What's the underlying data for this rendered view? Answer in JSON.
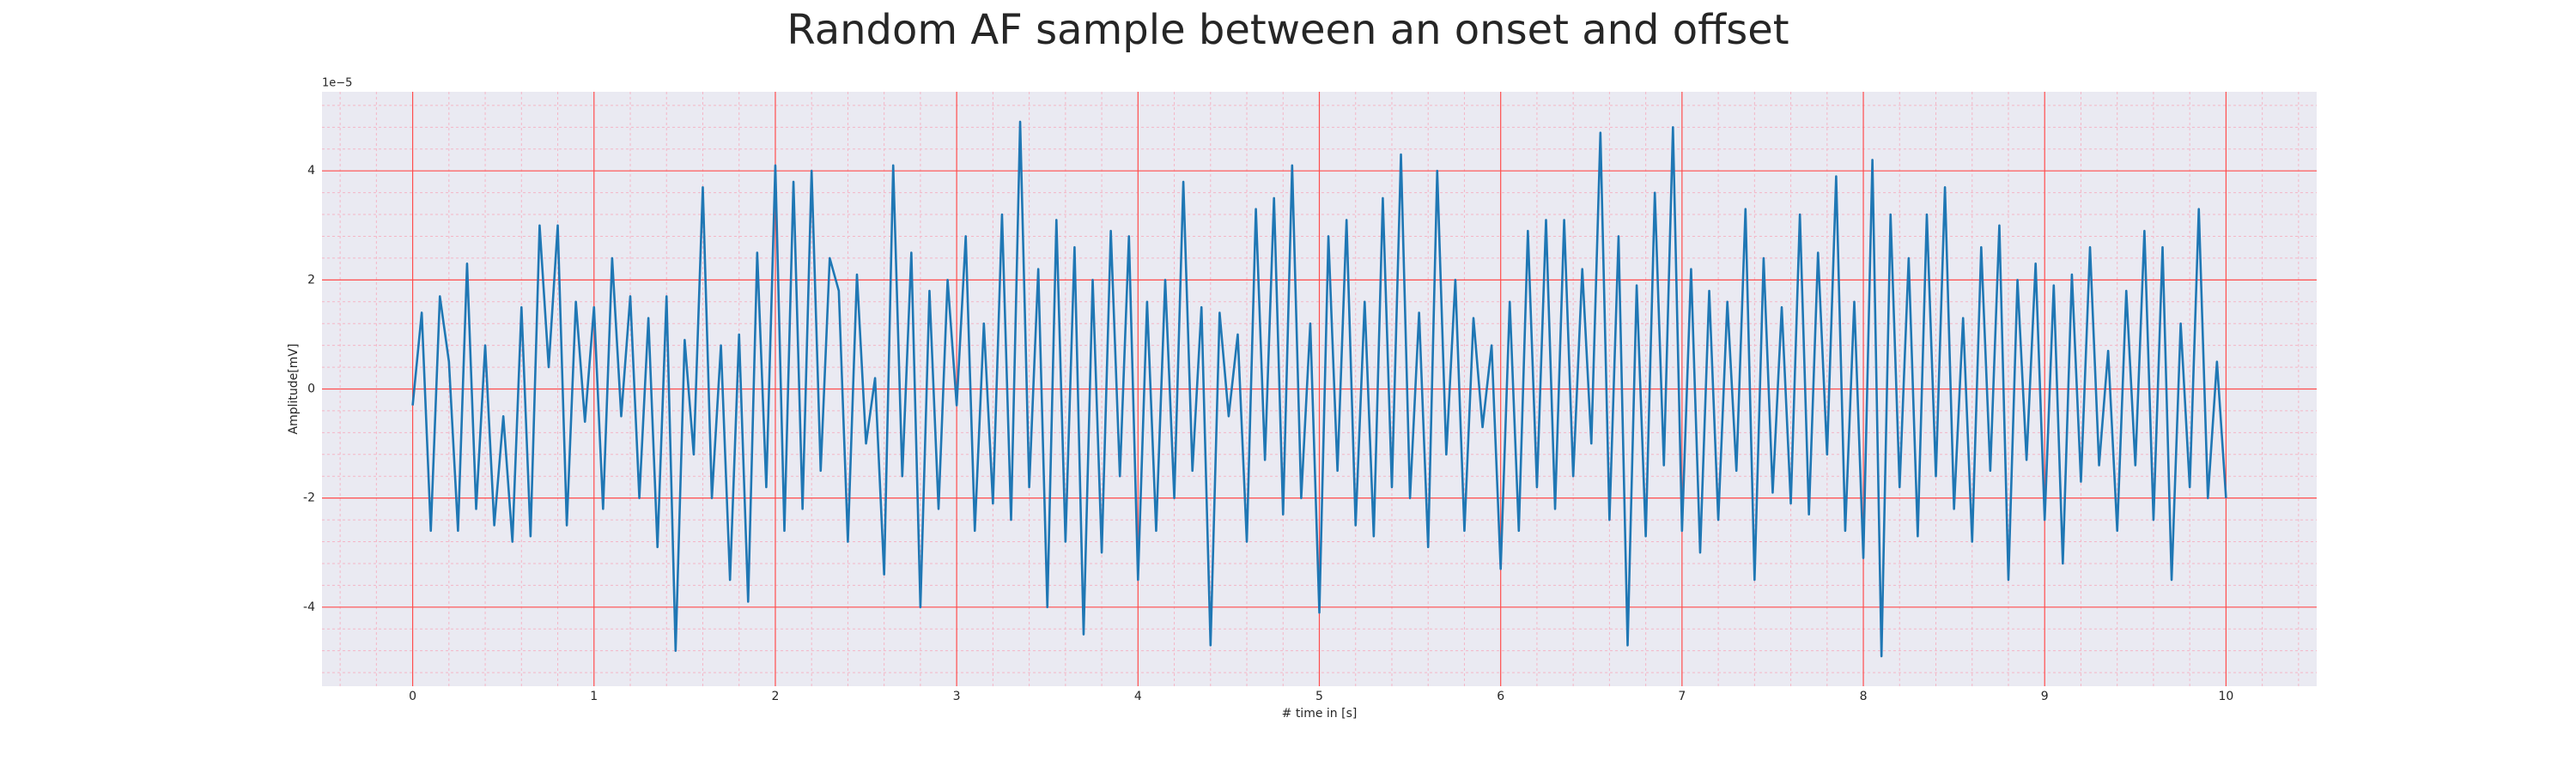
{
  "chart_data": {
    "type": "line",
    "title": "Random AF sample between an onset and offset",
    "xlabel": "# time in [s]",
    "ylabel": "Amplitude[mV]",
    "offset_label": "1e−5",
    "xlim": [
      -0.5,
      10.5
    ],
    "ylim": [
      -5.45,
      5.45
    ],
    "xticks": [
      0,
      1,
      2,
      3,
      4,
      5,
      6,
      7,
      8,
      9,
      10
    ],
    "yticks": [
      -4,
      -2,
      0,
      2,
      4
    ],
    "grid": true,
    "grid_color": "#ff4d4d",
    "minor_grid": true,
    "minor_divisions": 5,
    "minor_grid_color": "#f4b6c6",
    "background": "#eaeaf2",
    "x": [
      0,
      0.05,
      0.1,
      0.15,
      0.2,
      0.25,
      0.3,
      0.35,
      0.4,
      0.45,
      0.5,
      0.55,
      0.6,
      0.65,
      0.7,
      0.75,
      0.8,
      0.85,
      0.9,
      0.95,
      1,
      1.05,
      1.1,
      1.15,
      1.2,
      1.25,
      1.3,
      1.35,
      1.4,
      1.45,
      1.5,
      1.55,
      1.6,
      1.65,
      1.7,
      1.75,
      1.8,
      1.85,
      1.9,
      1.95,
      2,
      2.05,
      2.1,
      2.15,
      2.2,
      2.25,
      2.3,
      2.35,
      2.4,
      2.45,
      2.5,
      2.55,
      2.6,
      2.65,
      2.7,
      2.75,
      2.8,
      2.85,
      2.9,
      2.95,
      3,
      3.05,
      3.1,
      3.15,
      3.2,
      3.25,
      3.3,
      3.35,
      3.4,
      3.45,
      3.5,
      3.55,
      3.6,
      3.65,
      3.7,
      3.75,
      3.8,
      3.85,
      3.9,
      3.95,
      4,
      4.05,
      4.1,
      4.15,
      4.2,
      4.25,
      4.3,
      4.35,
      4.4,
      4.45,
      4.5,
      4.55,
      4.6,
      4.65,
      4.7,
      4.75,
      4.8,
      4.85,
      4.9,
      4.95,
      5,
      5.05,
      5.1,
      5.15,
      5.2,
      5.25,
      5.3,
      5.35,
      5.4,
      5.45,
      5.5,
      5.55,
      5.6,
      5.65,
      5.7,
      5.75,
      5.8,
      5.85,
      5.9,
      5.95,
      6,
      6.05,
      6.1,
      6.15,
      6.2,
      6.25,
      6.3,
      6.35,
      6.4,
      6.45,
      6.5,
      6.55,
      6.6,
      6.65,
      6.7,
      6.75,
      6.8,
      6.85,
      6.9,
      6.95,
      7,
      7.05,
      7.1,
      7.15,
      7.2,
      7.25,
      7.3,
      7.35,
      7.4,
      7.45,
      7.5,
      7.55,
      7.6,
      7.65,
      7.7,
      7.75,
      7.8,
      7.85,
      7.9,
      7.95,
      8,
      8.05,
      8.1,
      8.15,
      8.2,
      8.25,
      8.3,
      8.35,
      8.4,
      8.45,
      8.5,
      8.55,
      8.6,
      8.65,
      8.7,
      8.75,
      8.8,
      8.85,
      8.9,
      8.95,
      9,
      9.05,
      9.1,
      9.15,
      9.2,
      9.25,
      9.3,
      9.35,
      9.4,
      9.45,
      9.5,
      9.55,
      9.6,
      9.65,
      9.7,
      9.75,
      9.8,
      9.85,
      9.9,
      9.95,
      10
    ],
    "series": [
      {
        "color": "#1f77b4",
        "values": [
          -0.3,
          1.4,
          -2.6,
          1.7,
          0.5,
          -2.6,
          2.3,
          -2.2,
          0.8,
          -2.5,
          -0.5,
          -2.8,
          1.5,
          -2.7,
          3.0,
          0.4,
          3.0,
          -2.5,
          1.6,
          -0.6,
          1.5,
          -2.2,
          2.4,
          -0.5,
          1.7,
          -2.0,
          1.3,
          -2.9,
          1.7,
          -4.8,
          0.9,
          -1.2,
          3.7,
          -2.0,
          0.8,
          -3.5,
          1.0,
          -3.9,
          2.5,
          -1.8,
          4.1,
          -2.6,
          3.8,
          -2.2,
          4.0,
          -1.5,
          2.4,
          1.8,
          -2.8,
          2.1,
          -1.0,
          0.2,
          -3.4,
          4.1,
          -1.6,
          2.5,
          -4.0,
          1.8,
          -2.2,
          2.0,
          -0.3,
          2.8,
          -2.6,
          1.2,
          -2.1,
          3.2,
          -2.4,
          4.9,
          -1.8,
          2.2,
          -4.0,
          3.1,
          -2.8,
          2.6,
          -4.5,
          2.0,
          -3.0,
          2.9,
          -1.6,
          2.8,
          -3.5,
          1.6,
          -2.6,
          2.0,
          -2.0,
          3.8,
          -1.5,
          1.5,
          -4.7,
          1.4,
          -0.5,
          1.0,
          -2.8,
          3.3,
          -1.3,
          3.5,
          -2.3,
          4.1,
          -2.0,
          1.2,
          -4.1,
          2.8,
          -1.5,
          3.1,
          -2.5,
          1.6,
          -2.7,
          3.5,
          -1.8,
          4.3,
          -2.0,
          1.4,
          -2.9,
          4.0,
          -1.2,
          2.0,
          -2.6,
          1.3,
          -0.7,
          0.8,
          -3.3,
          1.6,
          -2.6,
          2.9,
          -1.8,
          3.1,
          -2.2,
          3.1,
          -1.6,
          2.2,
          -1.0,
          4.7,
          -2.4,
          2.8,
          -4.7,
          1.9,
          -2.7,
          3.6,
          -1.4,
          4.8,
          -2.6,
          2.2,
          -3.0,
          1.8,
          -2.4,
          1.6,
          -1.5,
          3.3,
          -3.5,
          2.4,
          -1.9,
          1.5,
          -2.1,
          3.2,
          -2.3,
          2.5,
          -1.2,
          3.9,
          -2.6,
          1.6,
          -3.1,
          4.2,
          -4.9,
          3.2,
          -1.8,
          2.4,
          -2.7,
          3.2,
          -1.6,
          3.7,
          -2.2,
          1.3,
          -2.8,
          2.6,
          -1.5,
          3.0,
          -3.5,
          2.0,
          -1.3,
          2.3,
          -2.4,
          1.9,
          -3.2,
          2.1,
          -1.7,
          2.6,
          -1.4,
          0.7,
          -2.6,
          1.8,
          -1.4,
          2.9,
          -2.4,
          2.6,
          -3.5,
          1.2,
          -1.8,
          3.3,
          -2.0,
          0.5,
          -2.0
        ]
      }
    ]
  }
}
